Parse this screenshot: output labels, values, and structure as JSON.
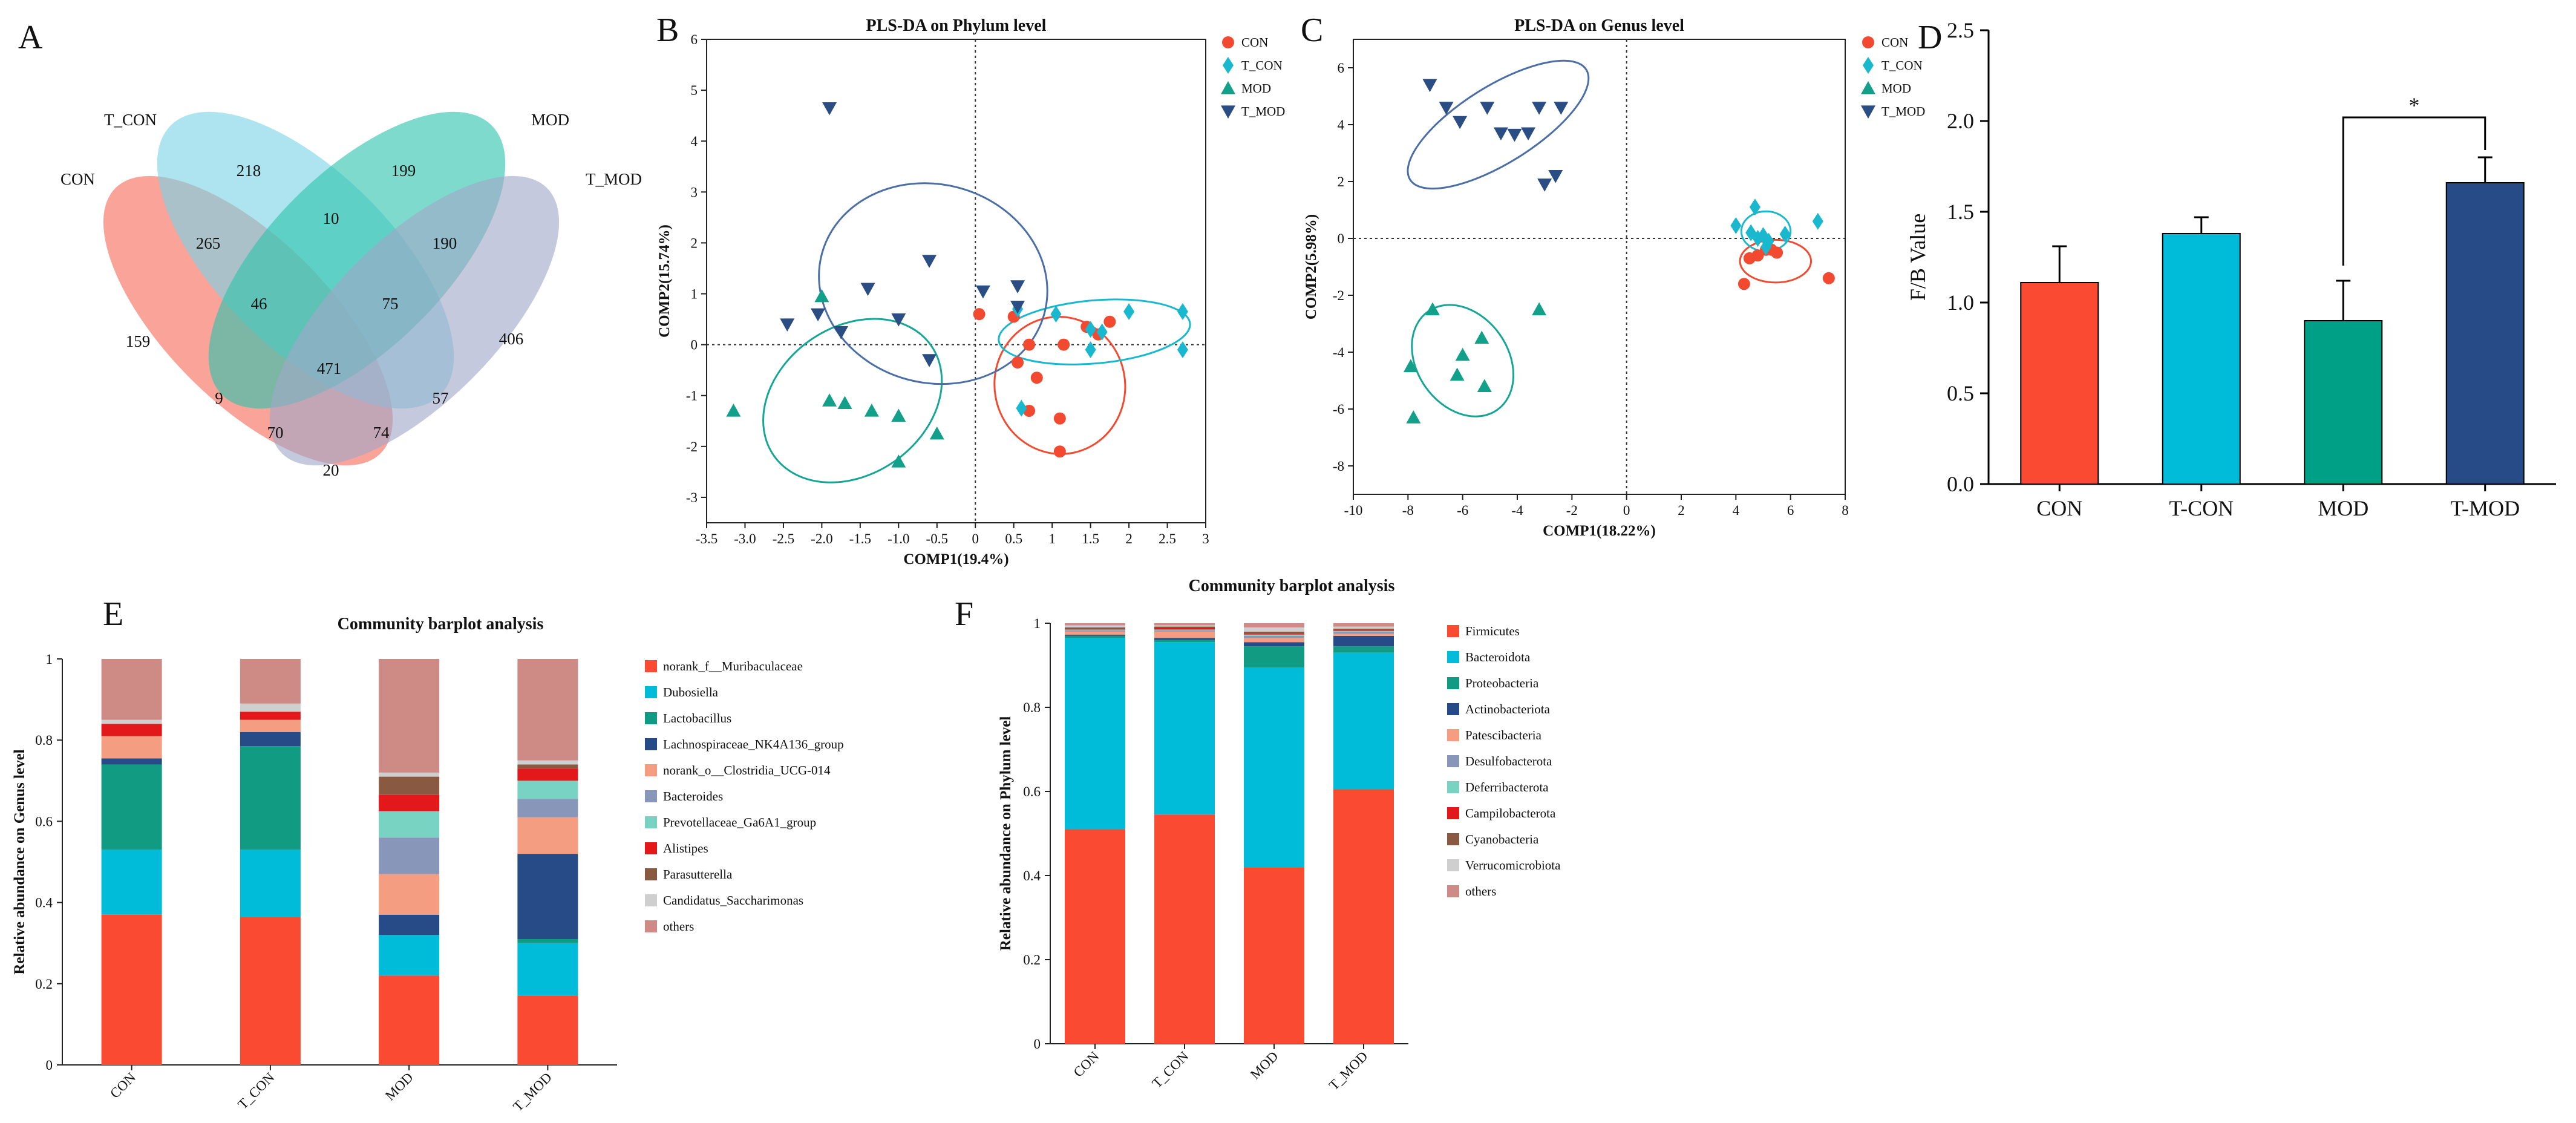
{
  "colors": {
    "CON": "#f24a30",
    "T_CON": "#1ab8cf",
    "MOD": "#13a08a",
    "T_MOD": "#2a4d84",
    "ellipse_MOD": "#17a596",
    "ellipse_T_MOD": "#4b6ea7",
    "D_CON": "#fb4a32",
    "D_T_CON": "#00bcd8",
    "D_MOD": "#00a086",
    "D_T_MOD": "#264b87"
  },
  "venn": {
    "letter": "A",
    "sets": [
      {
        "name": "CON",
        "color": "#f56a5b"
      },
      {
        "name": "T_CON",
        "color": "#7ad4e6"
      },
      {
        "name": "MOD",
        "color": "#2ec4ac"
      },
      {
        "name": "T_MOD",
        "color": "#9fa8c8"
      }
    ],
    "counts": {
      "con_only": "159",
      "tcon_only": "218",
      "mod_only": "199",
      "tmod_only": "406",
      "con_tcon": "265",
      "tcon_mod": "10",
      "mod_tmod": "190",
      "con_tmod": "20",
      "con_tcon_mod": "46",
      "tcon_mod_tmod": "75",
      "con_tcon_tmod": "9",
      "con_mod_tmod": "57",
      "con_tcon_tmod_b": "70",
      "con_mod_tmod_b": "74",
      "all": "471"
    }
  },
  "chart_data": [
    {
      "panel": "B",
      "type": "scatter",
      "title": "PLS-DA on Phylum level",
      "xlabel": "COMP1(19.4%)",
      "ylabel": "COMP2(15.74%)",
      "xlim": [
        -3.5,
        3
      ],
      "ylim": [
        -3.5,
        6
      ],
      "xticks": [
        "-3.5",
        "-3.0",
        "-2.5",
        "-2.0",
        "-1.5",
        "-1.0",
        "-0.5",
        "0",
        "0.5",
        "1",
        "1.5",
        "2",
        "2.5",
        "3"
      ],
      "yticks": [
        "-3",
        "-2",
        "-1",
        "0",
        "1",
        "2",
        "3",
        "4",
        "5",
        "6"
      ],
      "legend": [
        "CON",
        "T_CON",
        "MOD",
        "T_MOD"
      ],
      "series": [
        {
          "name": "CON",
          "marker": "circle",
          "points": [
            [
              0.05,
              0.6
            ],
            [
              0.55,
              -0.35
            ],
            [
              0.8,
              -0.65
            ],
            [
              1.15,
              0.0
            ],
            [
              0.7,
              0.0
            ],
            [
              1.6,
              0.2
            ],
            [
              1.75,
              0.45
            ],
            [
              1.1,
              -1.45
            ],
            [
              1.1,
              -2.1
            ],
            [
              0.5,
              0.55
            ],
            [
              0.7,
              -1.3
            ],
            [
              1.45,
              0.35
            ]
          ]
        },
        {
          "name": "T_CON",
          "marker": "diamond",
          "points": [
            [
              0.6,
              -1.25
            ],
            [
              1.05,
              0.6
            ],
            [
              1.5,
              -0.1
            ],
            [
              1.65,
              0.25
            ],
            [
              2.0,
              0.65
            ],
            [
              2.7,
              0.65
            ],
            [
              2.7,
              -0.1
            ],
            [
              0.55,
              0.7
            ],
            [
              1.5,
              0.3
            ]
          ]
        },
        {
          "name": "MOD",
          "marker": "triangle",
          "points": [
            [
              -3.15,
              -1.3
            ],
            [
              -2.0,
              0.95
            ],
            [
              -1.9,
              -1.1
            ],
            [
              -1.7,
              -1.15
            ],
            [
              -1.35,
              -1.3
            ],
            [
              -1.0,
              -1.4
            ],
            [
              -1.0,
              -2.3
            ],
            [
              -0.5,
              -1.75
            ]
          ]
        },
        {
          "name": "T_MOD",
          "marker": "triangle-down",
          "points": [
            [
              -1.9,
              4.65
            ],
            [
              -2.45,
              0.4
            ],
            [
              -2.05,
              0.6
            ],
            [
              -1.75,
              0.25
            ],
            [
              -1.4,
              1.1
            ],
            [
              -1.0,
              0.5
            ],
            [
              -0.6,
              1.65
            ],
            [
              0.1,
              1.05
            ],
            [
              0.55,
              1.15
            ],
            [
              0.55,
              0.75
            ],
            [
              -0.6,
              -0.3
            ]
          ]
        }
      ],
      "ellipses": [
        {
          "group": "CON",
          "cx": 1.1,
          "cy": -0.8,
          "rx": 0.85,
          "ry": 1.35,
          "rot": -10
        },
        {
          "group": "T_CON",
          "cx": 1.55,
          "cy": 0.25,
          "rx": 1.25,
          "ry": 0.62,
          "rot": -5
        },
        {
          "group": "MOD",
          "cx": -1.6,
          "cy": -1.1,
          "rx": 1.25,
          "ry": 1.45,
          "rot": -35
        },
        {
          "group": "T_MOD",
          "cx": -0.55,
          "cy": 1.2,
          "rx": 1.5,
          "ry": 1.95,
          "rot": 15
        }
      ]
    },
    {
      "panel": "C",
      "type": "scatter",
      "title": "PLS-DA on Genus level",
      "xlabel": "COMP1(18.22%)",
      "ylabel": "COMP2(5.98%)",
      "xlim": [
        -10,
        8
      ],
      "ylim": [
        -9,
        7
      ],
      "xticks": [
        "-10",
        "-8",
        "-6",
        "-4",
        "-2",
        "0",
        "2",
        "4",
        "6",
        "8"
      ],
      "yticks": [
        "-8",
        "-6",
        "-4",
        "-2",
        "0",
        "2",
        "4",
        "6"
      ],
      "legend": [
        "CON",
        "T_CON",
        "MOD",
        "T_MOD"
      ],
      "series": [
        {
          "name": "CON",
          "marker": "circle",
          "points": [
            [
              4.3,
              -1.6
            ],
            [
              4.5,
              -0.7
            ],
            [
              4.8,
              -0.6
            ],
            [
              5.1,
              -0.4
            ],
            [
              5.3,
              -0.4
            ],
            [
              5.5,
              -0.5
            ],
            [
              7.4,
              -1.4
            ]
          ]
        },
        {
          "name": "T_CON",
          "marker": "diamond",
          "points": [
            [
              4.0,
              0.45
            ],
            [
              4.55,
              0.2
            ],
            [
              4.7,
              1.1
            ],
            [
              4.8,
              0.0
            ],
            [
              5.0,
              0.1
            ],
            [
              5.2,
              -0.1
            ],
            [
              5.8,
              0.15
            ],
            [
              7.0,
              0.6
            ],
            [
              5.1,
              -0.3
            ]
          ]
        },
        {
          "name": "MOD",
          "marker": "triangle",
          "points": [
            [
              -7.9,
              -4.5
            ],
            [
              -7.8,
              -6.3
            ],
            [
              -7.1,
              -2.5
            ],
            [
              -6.2,
              -4.8
            ],
            [
              -6.0,
              -4.1
            ],
            [
              -5.3,
              -3.5
            ],
            [
              -5.2,
              -5.2
            ],
            [
              -3.2,
              -2.5
            ]
          ]
        },
        {
          "name": "T_MOD",
          "marker": "triangle-down",
          "points": [
            [
              -7.2,
              5.4
            ],
            [
              -6.6,
              4.6
            ],
            [
              -6.1,
              4.1
            ],
            [
              -5.1,
              4.6
            ],
            [
              -4.6,
              3.7
            ],
            [
              -4.1,
              3.65
            ],
            [
              -3.6,
              3.7
            ],
            [
              -3.2,
              4.6
            ],
            [
              -3.0,
              1.9
            ],
            [
              -2.6,
              2.2
            ],
            [
              -2.4,
              4.6
            ]
          ]
        }
      ],
      "ellipses": [
        {
          "group": "CON",
          "cx": 5.45,
          "cy": -0.8,
          "rx": 1.3,
          "ry": 0.75,
          "rot": 0
        },
        {
          "group": "T_CON",
          "cx": 5.1,
          "cy": 0.25,
          "rx": 0.9,
          "ry": 0.7,
          "rot": 0
        },
        {
          "group": "MOD",
          "cx": -6.0,
          "cy": -4.3,
          "rx": 2.2,
          "ry": 1.6,
          "rot": 55
        },
        {
          "group": "T_MOD",
          "cx": -4.7,
          "cy": 4.0,
          "rx": 3.8,
          "ry": 1.35,
          "rot": -32
        }
      ]
    },
    {
      "panel": "D",
      "type": "bar",
      "ylabel": "F/B Value",
      "categories": [
        "CON",
        "T-CON",
        "MOD",
        "T-MOD"
      ],
      "values": [
        1.11,
        1.38,
        0.9,
        1.66
      ],
      "errors": [
        0.2,
        0.09,
        0.22,
        0.14
      ],
      "ylim": [
        0,
        2.5
      ],
      "yticks": [
        "0.0",
        "0.5",
        "1.0",
        "1.5",
        "2.0",
        "2.5"
      ],
      "annotation": {
        "text": "*",
        "from": 2,
        "to": 3
      }
    },
    {
      "panel": "E",
      "type": "bar",
      "stacked": true,
      "title": "Community barplot analysis",
      "ylabel": "Relative abundance on Genus level",
      "categories": [
        "CON",
        "T_CON",
        "MOD",
        "T_MOD"
      ],
      "ylim": [
        0,
        1
      ],
      "yticks": [
        "0",
        "0.2",
        "0.4",
        "0.6",
        "0.8",
        "1"
      ],
      "series": [
        {
          "name": "norank_f__Muribaculaceae",
          "color": "#fb4a32",
          "values": [
            0.37,
            0.365,
            0.22,
            0.17
          ]
        },
        {
          "name": "Dubosiella",
          "color": "#00bcd8",
          "values": [
            0.16,
            0.165,
            0.1,
            0.13
          ]
        },
        {
          "name": "Lactobacillus",
          "color": "#119b82",
          "values": [
            0.21,
            0.255,
            0.0,
            0.01
          ]
        },
        {
          "name": "Lachnospiraceae_NK4A136_group",
          "color": "#264b87",
          "values": [
            0.015,
            0.035,
            0.05,
            0.21
          ]
        },
        {
          "name": "norank_o__Clostridia_UCG-014",
          "color": "#f59d80",
          "values": [
            0.055,
            0.03,
            0.1,
            0.09
          ]
        },
        {
          "name": "Bacteroides",
          "color": "#8796b9",
          "values": [
            0.0,
            0.0,
            0.09,
            0.045
          ]
        },
        {
          "name": "Prevotellaceae_Ga6A1_group",
          "color": "#79d3c2",
          "values": [
            0.0,
            0.0,
            0.065,
            0.045
          ]
        },
        {
          "name": "Alistipes",
          "color": "#e2181b",
          "values": [
            0.03,
            0.02,
            0.04,
            0.03
          ]
        },
        {
          "name": "Parasutterella",
          "color": "#8a5941",
          "values": [
            0.0,
            0.0,
            0.045,
            0.01
          ]
        },
        {
          "name": "Candidatus_Saccharimonas",
          "color": "#cfcfcf",
          "values": [
            0.01,
            0.02,
            0.01,
            0.01
          ]
        },
        {
          "name": "others",
          "color": "#ce8b85",
          "values": [
            0.15,
            0.11,
            0.28,
            0.25
          ]
        }
      ]
    },
    {
      "panel": "F",
      "type": "bar",
      "stacked": true,
      "title": "Community barplot analysis",
      "ylabel": "Relative abundance on Phylum level",
      "categories": [
        "CON",
        "T_CON",
        "MOD",
        "T_MOD"
      ],
      "ylim": [
        0,
        1
      ],
      "yticks": [
        "0",
        "0.2",
        "0.4",
        "0.6",
        "0.8",
        "1"
      ],
      "series": [
        {
          "name": "Firmicutes",
          "color": "#fb4a32",
          "values": [
            0.51,
            0.545,
            0.42,
            0.605
          ]
        },
        {
          "name": "Bacteroidota",
          "color": "#00bcd8",
          "values": [
            0.455,
            0.41,
            0.475,
            0.325
          ]
        },
        {
          "name": "Proteobacteria",
          "color": "#119b82",
          "values": [
            0.005,
            0.005,
            0.05,
            0.015
          ]
        },
        {
          "name": "Actinobacteriota",
          "color": "#264b87",
          "values": [
            0.003,
            0.005,
            0.01,
            0.025
          ]
        },
        {
          "name": "Patescibacteria",
          "color": "#f59d80",
          "values": [
            0.007,
            0.015,
            0.01,
            0.005
          ]
        },
        {
          "name": "Desulfobacterota",
          "color": "#8796b9",
          "values": [
            0.003,
            0.003,
            0.005,
            0.005
          ]
        },
        {
          "name": "Deferribacterota",
          "color": "#79d3c2",
          "values": [
            0.002,
            0.002,
            0.003,
            0.002
          ]
        },
        {
          "name": "Campilobacterota",
          "color": "#e2181b",
          "values": [
            0.002,
            0.005,
            0.002,
            0.003
          ]
        },
        {
          "name": "Cyanobacteria",
          "color": "#8a5941",
          "values": [
            0.003,
            0.002,
            0.005,
            0.002
          ]
        },
        {
          "name": "Verrucomicrobiota",
          "color": "#cfcfcf",
          "values": [
            0.005,
            0.003,
            0.01,
            0.005
          ]
        },
        {
          "name": "others",
          "color": "#ce8b85",
          "values": [
            0.005,
            0.005,
            0.01,
            0.008
          ]
        }
      ]
    }
  ]
}
